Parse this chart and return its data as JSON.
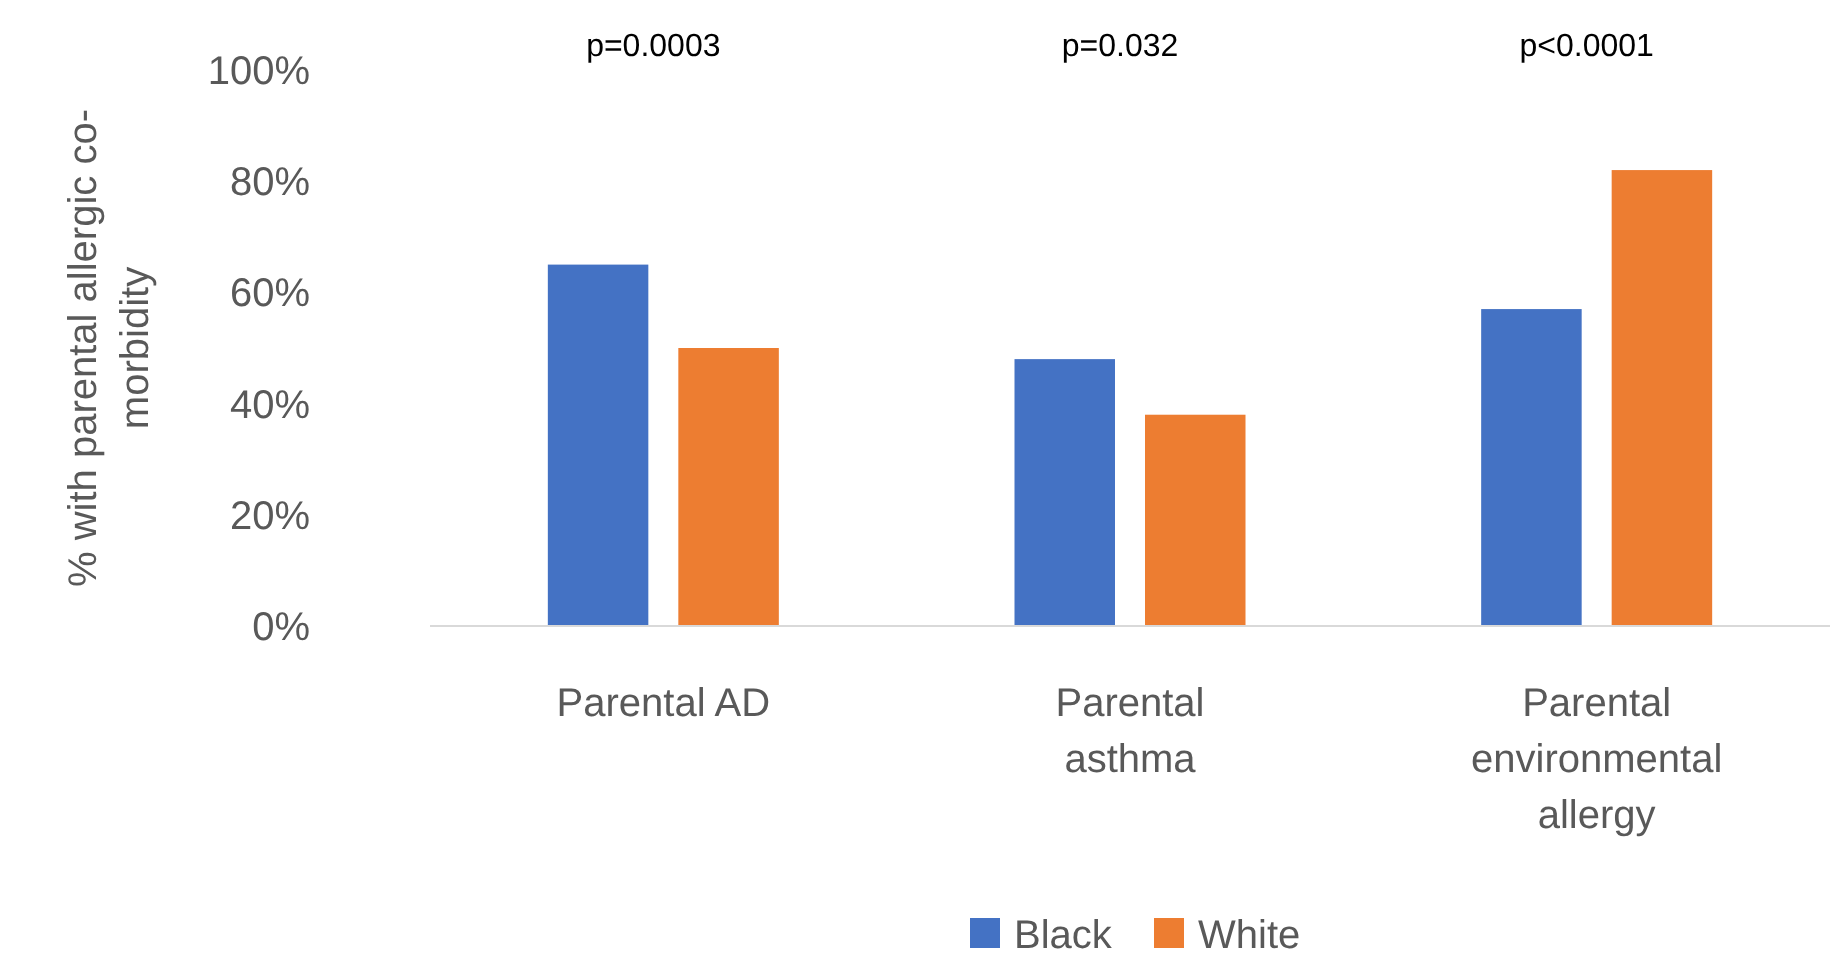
{
  "chart_data": {
    "type": "bar",
    "ylabel": "% with parental allergic co-morbidity",
    "categories": [
      "Parental AD",
      "Parental asthma",
      "Parental environmental allergy"
    ],
    "series": [
      {
        "name": "Black",
        "color": "#4472c4",
        "values": [
          65,
          48,
          57
        ]
      },
      {
        "name": "White",
        "color": "#ed7d31",
        "values": [
          50,
          38,
          82
        ]
      }
    ],
    "ylim": [
      0,
      100
    ],
    "yticks": [
      {
        "value": 0,
        "label": "0%"
      },
      {
        "value": 20,
        "label": "20%"
      },
      {
        "value": 40,
        "label": "40%"
      },
      {
        "value": 60,
        "label": "60%"
      },
      {
        "value": 80,
        "label": "80%"
      },
      {
        "value": 100,
        "label": "100%"
      }
    ],
    "annotations": [
      "p=0.0003",
      "p=0.032",
      "p<0.0001"
    ],
    "legend": "bottom",
    "grid": false
  }
}
